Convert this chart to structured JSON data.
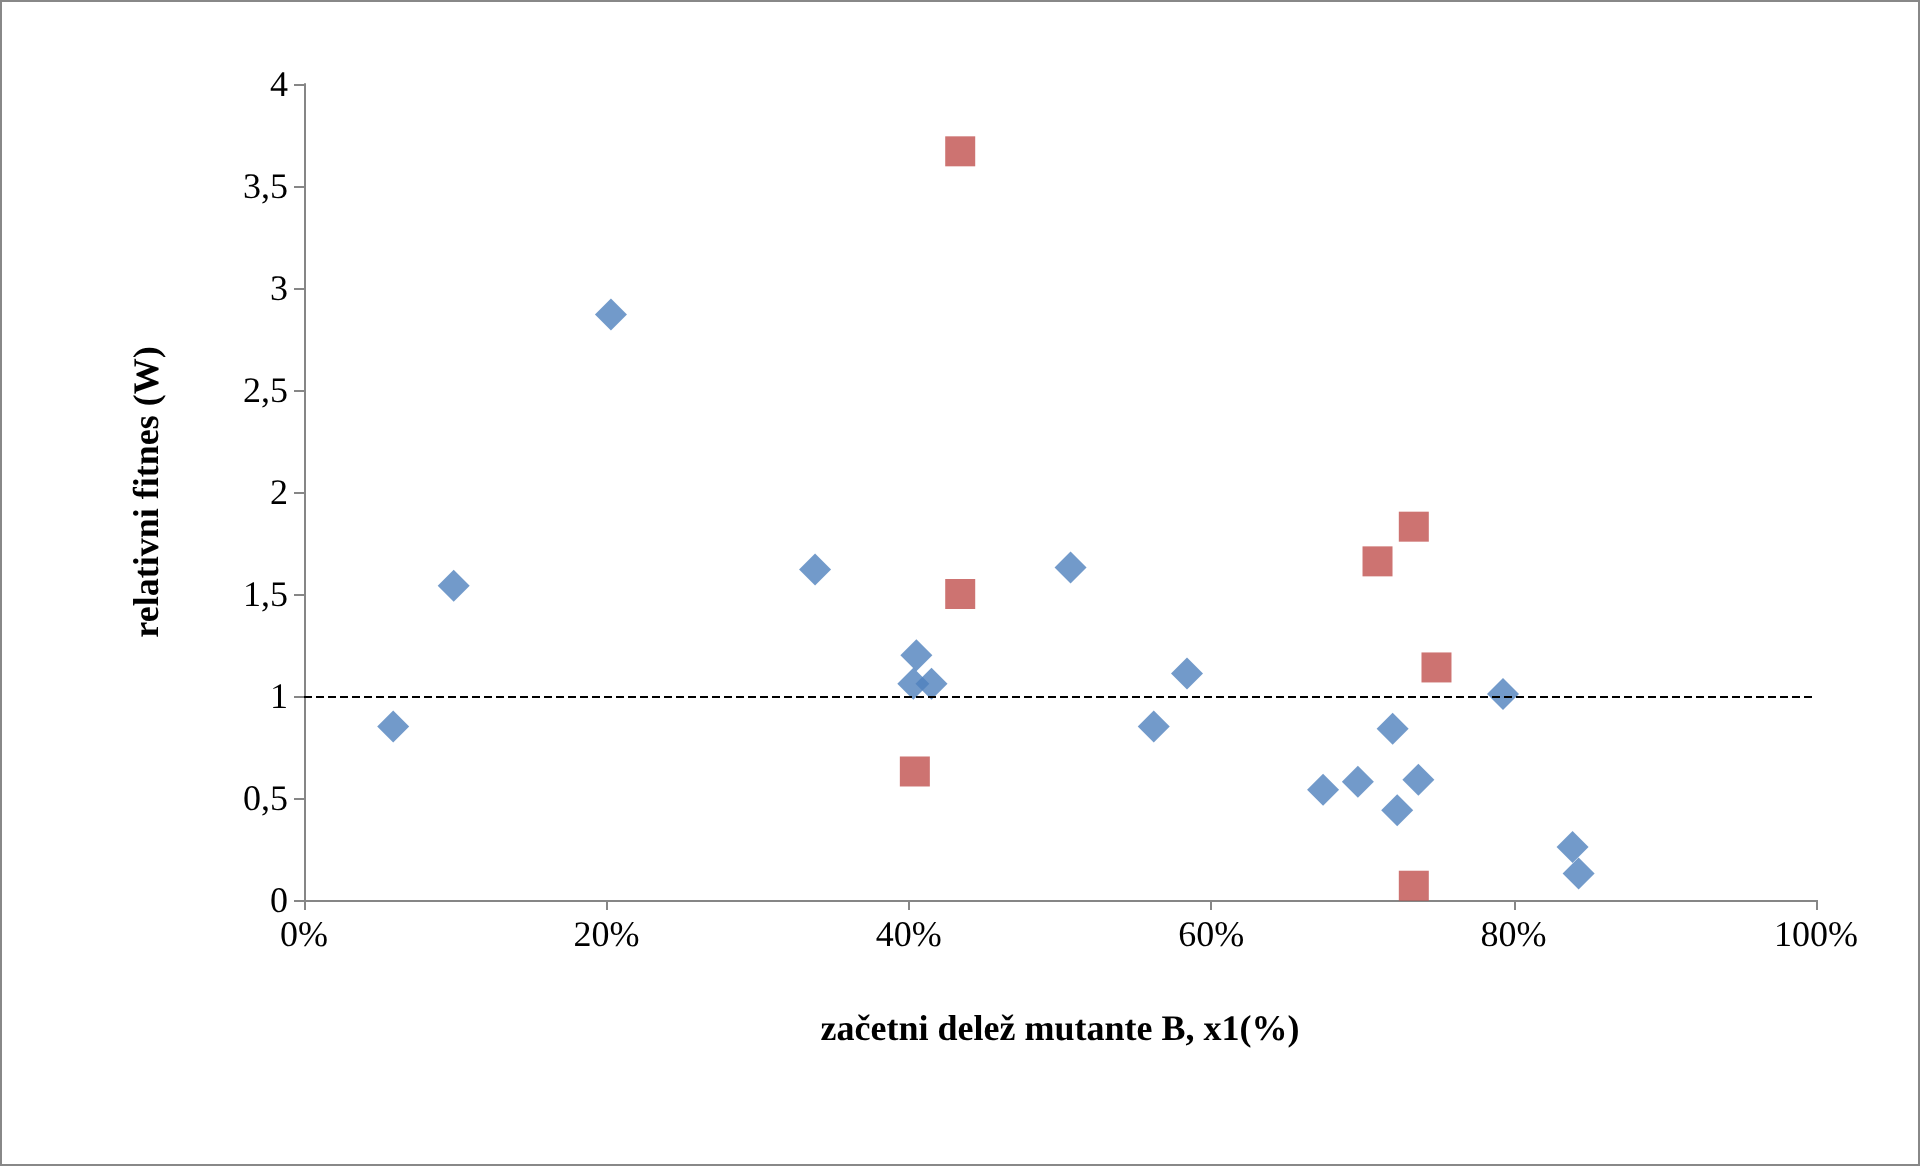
{
  "chart_data": {
    "type": "scatter",
    "xlabel": "začetni delež mutante B, x1(%)",
    "ylabel": "relativni fitnes (W)",
    "xlim": [
      0,
      100
    ],
    "xticks": [
      {
        "value": 0,
        "label": "0%"
      },
      {
        "value": 20,
        "label": "20%"
      },
      {
        "value": 40,
        "label": "40%"
      },
      {
        "value": 60,
        "label": "60%"
      },
      {
        "value": 80,
        "label": "80%"
      },
      {
        "value": 100,
        "label": "100%"
      }
    ],
    "ylim": [
      0,
      4
    ],
    "yticks": [
      {
        "value": 0,
        "label": "0"
      },
      {
        "value": 0.5,
        "label": "0,5"
      },
      {
        "value": 1,
        "label": "1"
      },
      {
        "value": 1.5,
        "label": "1,5"
      },
      {
        "value": 2,
        "label": "2"
      },
      {
        "value": 2.5,
        "label": "2,5"
      },
      {
        "value": 3,
        "label": "3"
      },
      {
        "value": 3.5,
        "label": "3,5"
      },
      {
        "value": 4,
        "label": "4"
      }
    ],
    "grid": false,
    "series": [
      {
        "color": "#4f81bd",
        "marker": "diamond",
        "x": [
          5.9,
          9.9,
          20.3,
          33.8,
          40.5,
          40.3,
          41.5,
          50.7,
          56.2,
          58.4,
          67.4,
          69.7,
          72.0,
          72.3,
          73.7,
          79.3,
          83.9,
          84.3
        ],
        "values": [
          0.85,
          1.54,
          2.87,
          1.62,
          1.2,
          1.06,
          1.06,
          1.63,
          0.85,
          1.11,
          0.54,
          0.58,
          0.84,
          0.44,
          0.59,
          1.01,
          0.26,
          0.13
        ]
      },
      {
        "color": "#c0504d",
        "marker": "square",
        "x": [
          43.4,
          43.4,
          40.4,
          71.0,
          73.4,
          74.9,
          73.4
        ],
        "values": [
          3.67,
          1.5,
          0.63,
          1.66,
          1.83,
          1.14,
          0.07
        ]
      }
    ],
    "ref_lines": [
      {
        "axis": "y",
        "value": 1,
        "line_style": "dashed",
        "color": "#000000"
      }
    ]
  }
}
